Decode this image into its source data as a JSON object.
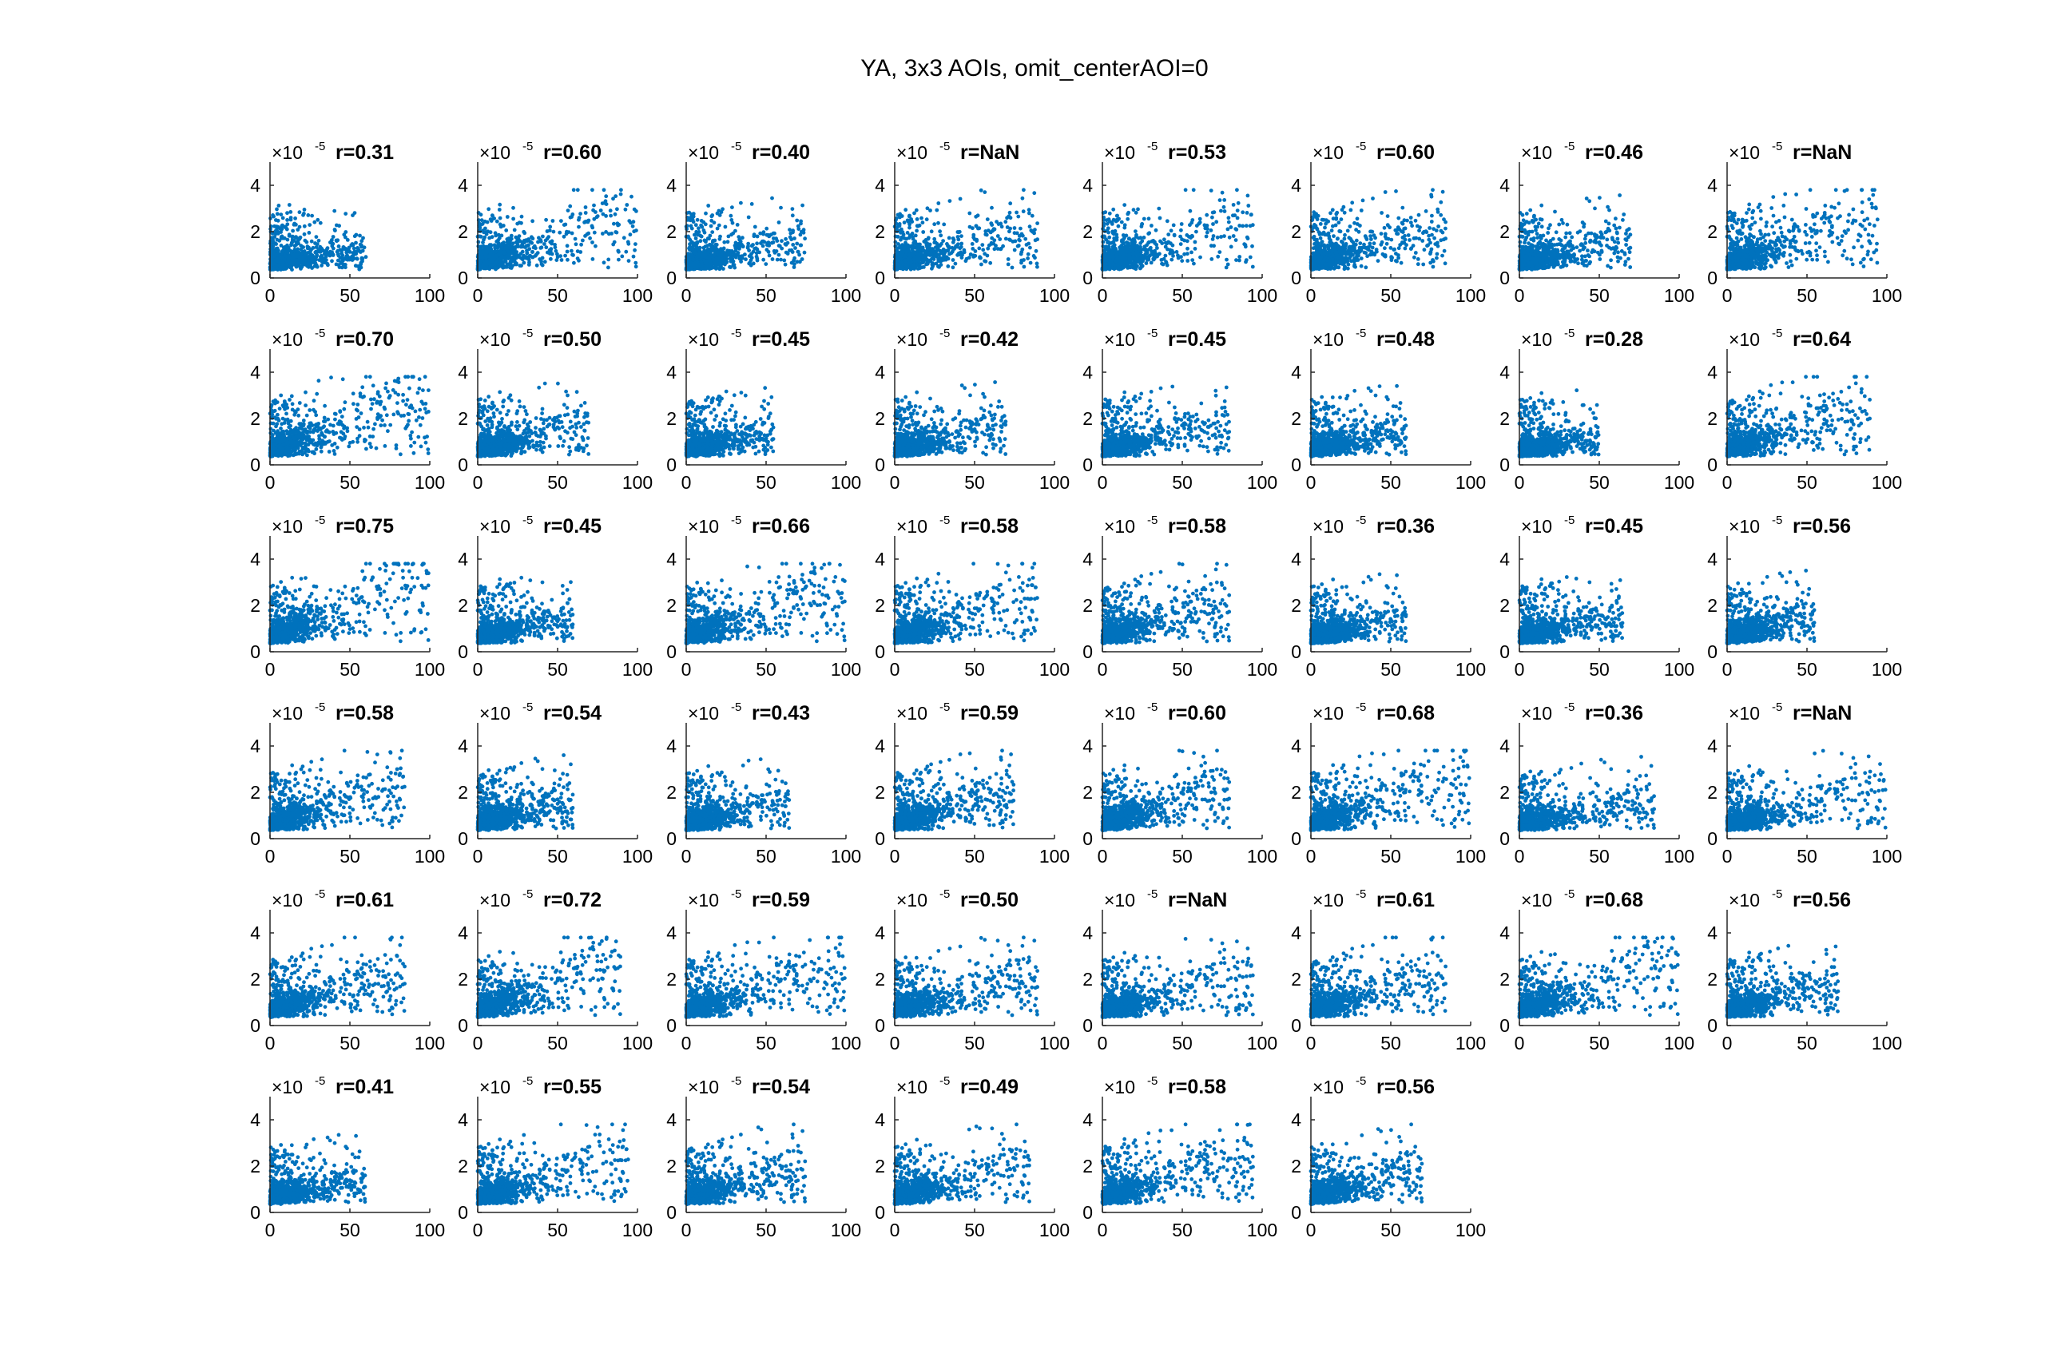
{
  "figure": {
    "title": "YA, 3x3 AOIs, omit_centerAOI=0",
    "marker_color": "#0072BD"
  },
  "chart_data": {
    "type": "scatter",
    "layout": {
      "rows": 6,
      "cols": 8
    },
    "xlim": [
      0,
      100
    ],
    "ylim": [
      0,
      5
    ],
    "xticks": [
      0,
      50,
      100
    ],
    "yticks": [
      0,
      2,
      4
    ],
    "y_exponent": "×10",
    "y_exponent_power": "-5",
    "panel_titles": [
      "r=0.31",
      "r=0.60",
      "r=0.40",
      "r=NaN",
      "r=0.53",
      "r=0.60",
      "r=0.46",
      "r=NaN",
      "r=0.70",
      "r=0.50",
      "r=0.45",
      "r=0.42",
      "r=0.45",
      "r=0.48",
      "r=0.28",
      "r=0.64",
      "r=0.75",
      "r=0.45",
      "r=0.66",
      "r=0.58",
      "r=0.58",
      "r=0.36",
      "r=0.45",
      "r=0.56",
      "r=0.58",
      "r=0.54",
      "r=0.43",
      "r=0.59",
      "r=0.60",
      "r=0.68",
      "r=0.36",
      "r=NaN",
      "r=0.61",
      "r=0.72",
      "r=0.59",
      "r=0.50",
      "r=NaN",
      "r=0.61",
      "r=0.68",
      "r=0.56",
      "r=0.41",
      "r=0.55",
      "r=0.54",
      "r=0.49",
      "r=0.58",
      "r=0.56"
    ],
    "spread": [
      [
        60,
        0.35
      ],
      [
        100,
        0.65
      ],
      [
        75,
        0.45
      ],
      [
        90,
        0.55
      ],
      [
        95,
        0.6
      ],
      [
        85,
        0.6
      ],
      [
        70,
        0.5
      ],
      [
        95,
        0.7
      ],
      [
        100,
        0.75
      ],
      [
        70,
        0.55
      ],
      [
        55,
        0.5
      ],
      [
        70,
        0.5
      ],
      [
        80,
        0.5
      ],
      [
        60,
        0.5
      ],
      [
        50,
        0.35
      ],
      [
        90,
        0.7
      ],
      [
        100,
        0.8
      ],
      [
        60,
        0.5
      ],
      [
        100,
        0.7
      ],
      [
        90,
        0.65
      ],
      [
        80,
        0.65
      ],
      [
        60,
        0.45
      ],
      [
        65,
        0.5
      ],
      [
        55,
        0.6
      ],
      [
        85,
        0.65
      ],
      [
        60,
        0.6
      ],
      [
        65,
        0.5
      ],
      [
        75,
        0.65
      ],
      [
        80,
        0.65
      ],
      [
        100,
        0.7
      ],
      [
        85,
        0.4
      ],
      [
        100,
        0.5
      ],
      [
        85,
        0.65
      ],
      [
        90,
        0.75
      ],
      [
        100,
        0.65
      ],
      [
        90,
        0.55
      ],
      [
        95,
        0.55
      ],
      [
        85,
        0.65
      ],
      [
        100,
        0.7
      ],
      [
        70,
        0.6
      ],
      [
        60,
        0.45
      ],
      [
        95,
        0.6
      ],
      [
        75,
        0.6
      ],
      [
        85,
        0.55
      ],
      [
        95,
        0.65
      ],
      [
        70,
        0.6
      ]
    ],
    "points_per_panel": 900
  }
}
